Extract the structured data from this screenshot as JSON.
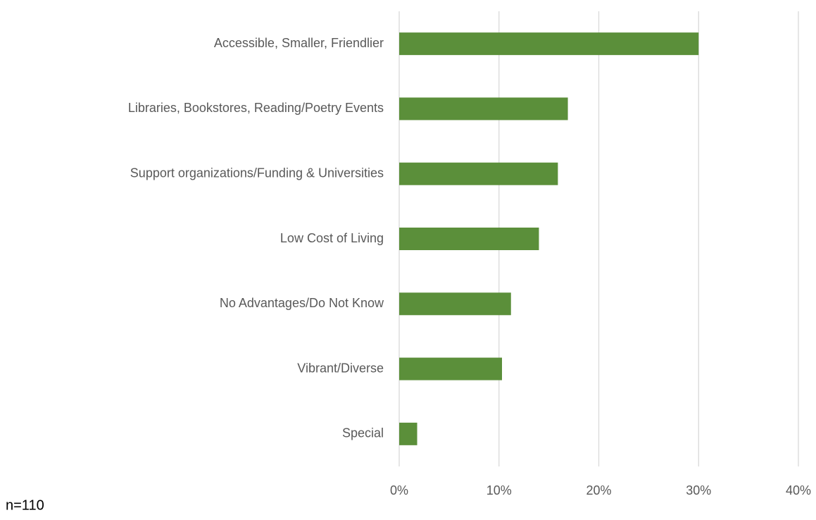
{
  "chart_data": {
    "type": "hbar",
    "categories": [
      "Accessible, Smaller, Friendlier",
      "Libraries, Bookstores, Reading/Poetry Events",
      "Support organizations/Funding & Universities",
      "Low Cost of Living",
      "No Advantages/Do Not Know",
      "Vibrant/Diverse",
      "Special"
    ],
    "values": [
      30.0,
      16.9,
      15.9,
      14.0,
      11.2,
      10.3,
      1.8
    ],
    "color": "#5b8f3a",
    "xlim": [
      0,
      40
    ],
    "xticks": [
      {
        "value": 0,
        "label": "0%"
      },
      {
        "value": 10,
        "label": "10%"
      },
      {
        "value": 20,
        "label": "20%"
      },
      {
        "value": 30,
        "label": "30%"
      },
      {
        "value": 40,
        "label": "40%"
      }
    ],
    "grid": true,
    "annotation": "n=110"
  }
}
